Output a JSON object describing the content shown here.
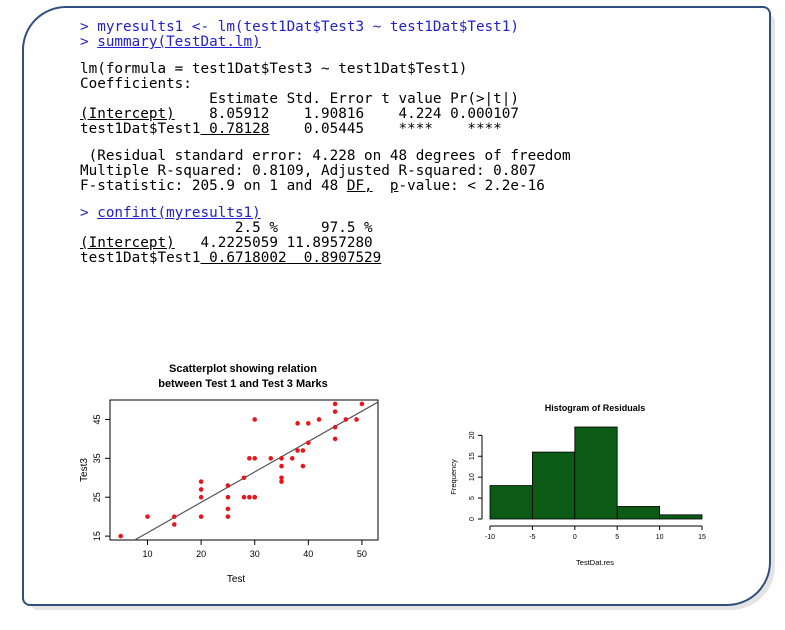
{
  "console": {
    "cmd1": "> myresults1 <- lm(test1Dat$Test3 ~ test1Dat$Test1)",
    "cmd2_prefix": "> ",
    "cmd2_call": "summary(TestDat.lm)",
    "formula_line": "lm(formula = test1Dat$Test3 ~ test1Dat$Test1)",
    "coef_title": "Coefficients:",
    "coef_header": "               Estimate Std. Error t value Pr(>|t|)",
    "coef_row1_name": "(Intercept)",
    "coef_row1_values": "    8.05912    1.90816    4.224 0.000107",
    "coef_row2_name": "test1Dat$Test1",
    "coef_row2_est": " 0.78128",
    "coef_row2_values": "    0.05445    ****    ****",
    "resid_line": " (Residual standard error: 4.228 on 48 degrees of freedom",
    "rsq_line": "Multiple R-squared: 0.8109, Adjusted R-squared: 0.807",
    "f_line_a": "F-statistic: 205.9 on 1 and 48 ",
    "f_line_df": "DF,",
    "f_line_b": "  ",
    "f_line_p": "p",
    "f_line_c": "-value: < 2.2e-16",
    "cmd3_prefix": "> ",
    "cmd3_call": "confint(myresults1)",
    "ci_header": "                  2.5 %     97.5 %",
    "ci_row1_name": "(Intercept)",
    "ci_row1_values": "   4.2225059 11.8957280",
    "ci_row2_name": "test1Dat$Test1",
    "ci_row2_values": " 0.6718002  0.8907529"
  },
  "colors": {
    "frame_border": "#2f4f7f",
    "command_text": "#2222cc",
    "points": "#e8161b",
    "regression_line": "#555555",
    "histogram_bars": "#0b5b16"
  },
  "chart_data": [
    {
      "type": "scatter",
      "title": "Scatterplot showing relation\nbetween Test 1 and Test 3 Marks",
      "title_lines": [
        "Scatterplot showing relation",
        "between Test 1 and Test 3 Marks"
      ],
      "xlabel": "Test",
      "ylabel": "Test3",
      "xlim": [
        3,
        53
      ],
      "ylim": [
        14,
        50
      ],
      "xticks": [
        10,
        20,
        30,
        40,
        50
      ],
      "yticks": [
        15,
        25,
        35,
        45
      ],
      "x": [
        5,
        10,
        15,
        15,
        20,
        20,
        20,
        20,
        25,
        25,
        25,
        25,
        28,
        28,
        29,
        29,
        30,
        30,
        30,
        30,
        33,
        35,
        35,
        35,
        35,
        37,
        38,
        38,
        39,
        39,
        40,
        40,
        42,
        45,
        45,
        45,
        45,
        47,
        49,
        50
      ],
      "y": [
        15,
        20,
        20,
        18,
        25,
        20,
        27,
        29,
        28,
        25,
        22,
        20,
        30,
        25,
        35,
        25,
        35,
        25,
        45,
        25,
        35,
        30,
        29,
        33,
        35,
        35,
        37,
        44,
        33,
        37,
        44,
        39,
        45,
        43,
        47,
        49,
        40,
        45,
        45,
        49
      ],
      "regression": {
        "intercept": 8.05912,
        "slope": 0.78128
      },
      "grid": false
    },
    {
      "type": "bar",
      "title": "Histogram of Residuals",
      "xlabel": "TestDat.res",
      "ylabel": "Frequency",
      "bin_edges": [
        -10,
        -5,
        0,
        5,
        10,
        15
      ],
      "values": [
        8,
        16,
        22,
        3,
        1
      ],
      "xticks": [
        -10,
        -5,
        0,
        5,
        10,
        15
      ],
      "yticks": [
        0,
        5,
        10,
        15,
        20
      ],
      "ylim": [
        0,
        22
      ],
      "grid": false
    }
  ]
}
